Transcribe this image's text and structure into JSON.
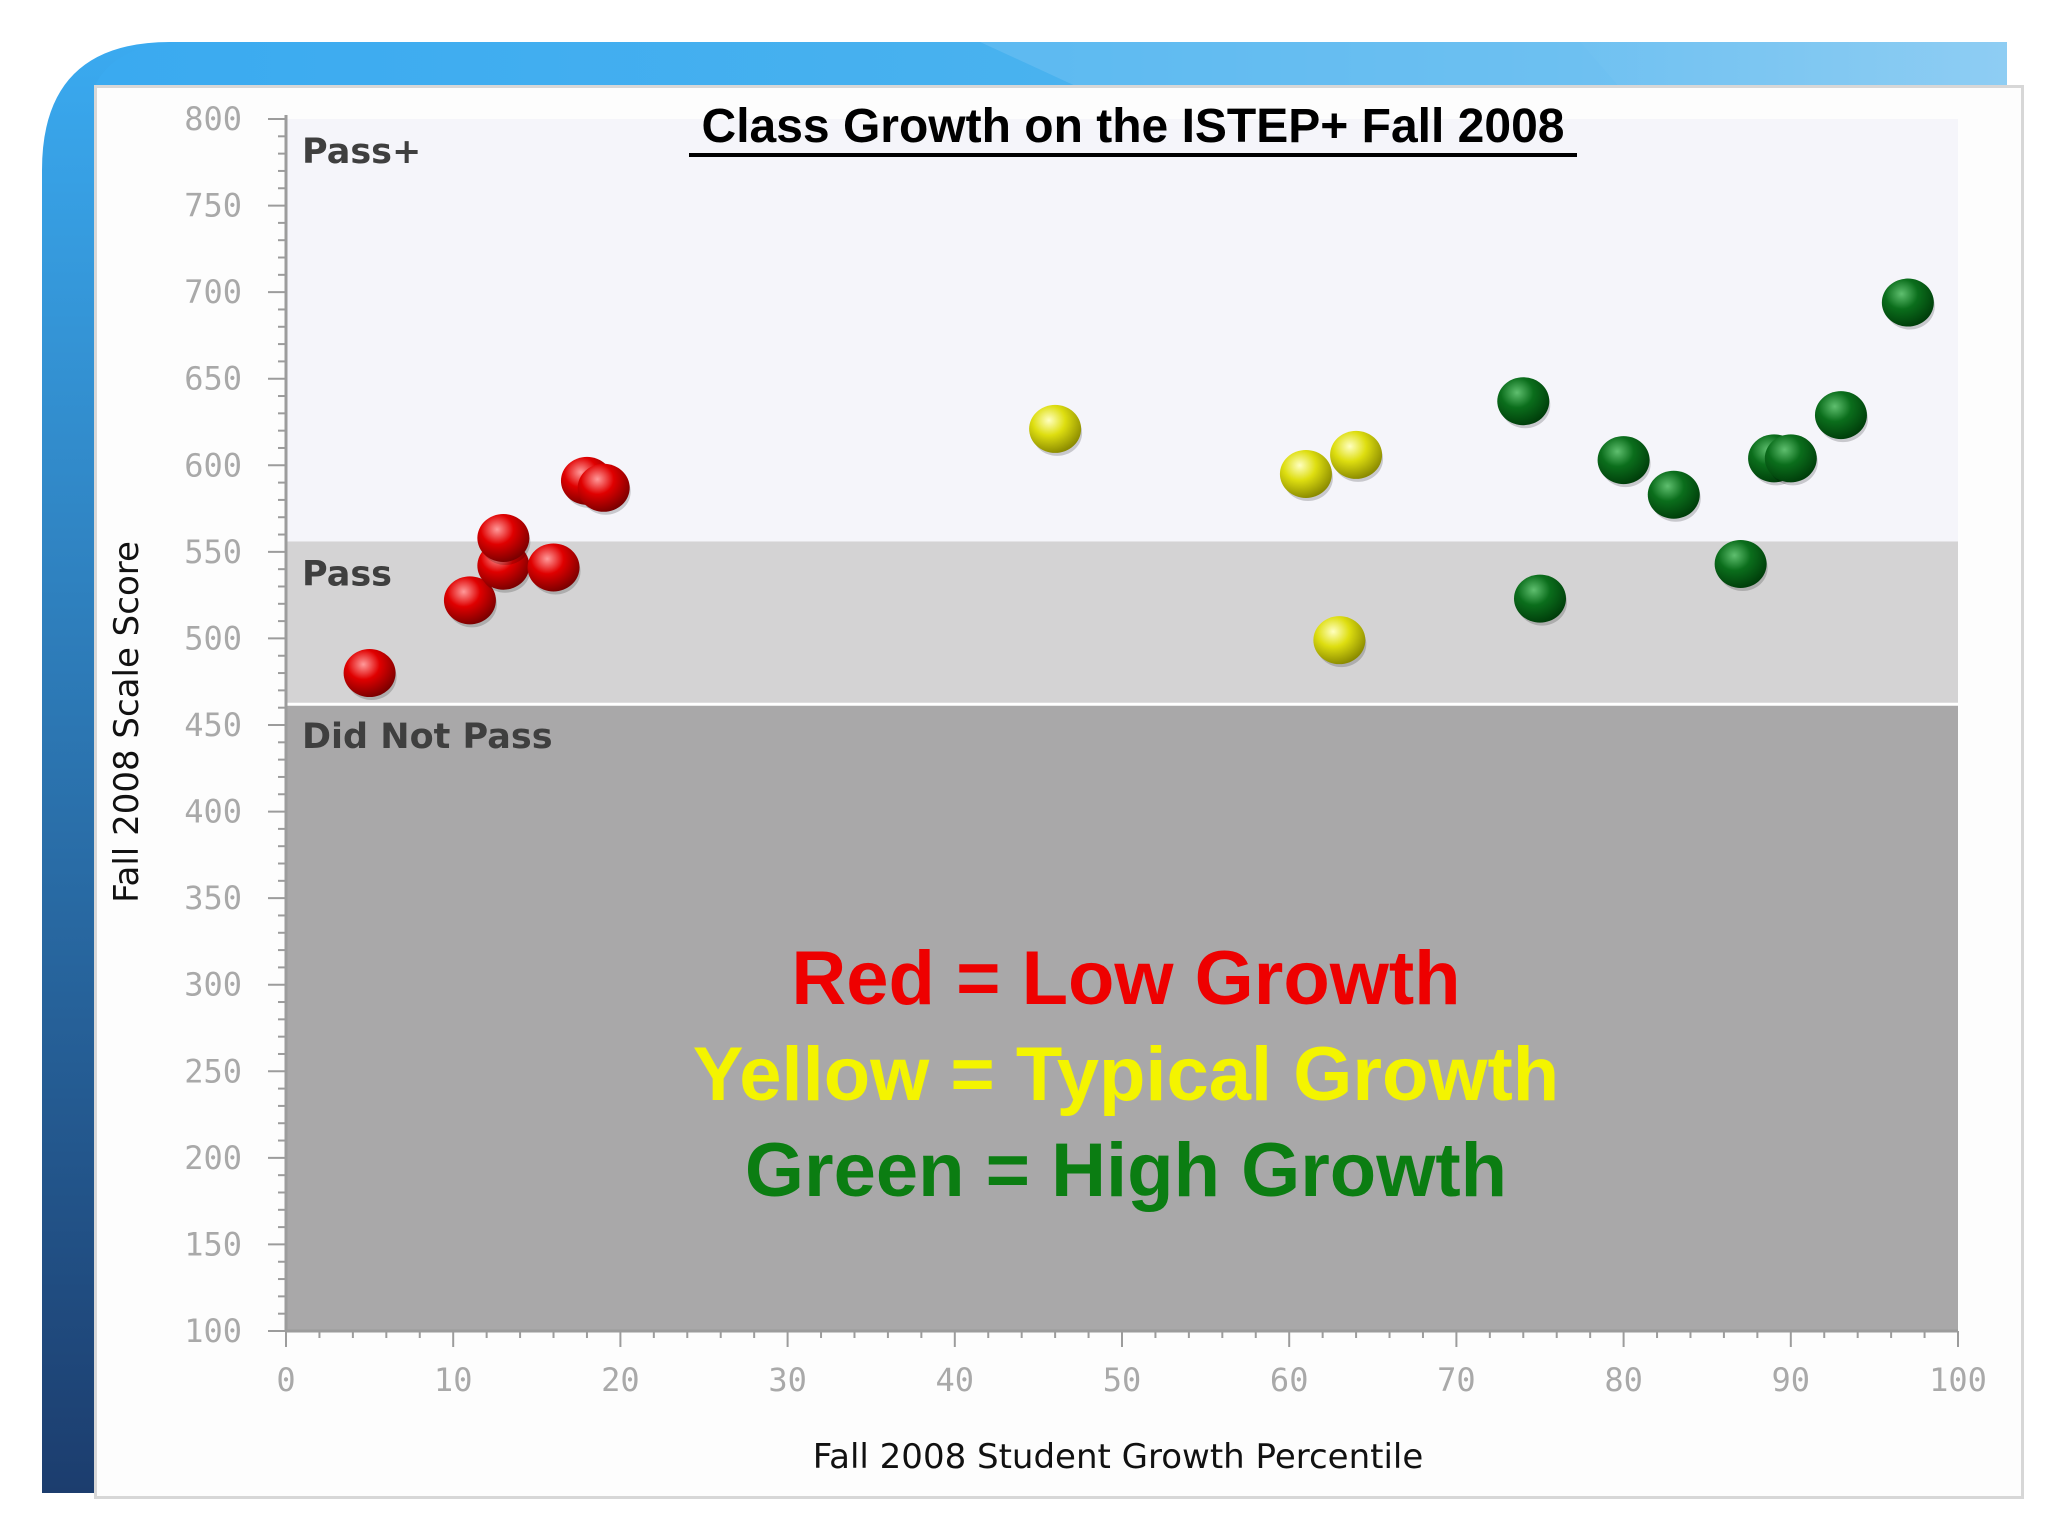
{
  "chart_data": {
    "type": "scatter",
    "title": "Class Growth on the ISTEP+ Fall 2008",
    "xlabel": "Fall 2008 Student Growth Percentile",
    "ylabel": "Fall 2008 Scale Score",
    "xlim": [
      0,
      100
    ],
    "ylim": [
      100,
      800
    ],
    "x_ticks": [
      "0",
      "10",
      "20",
      "30",
      "40",
      "50",
      "60",
      "70",
      "80",
      "90",
      "100"
    ],
    "y_ticks": [
      "100",
      "150",
      "200",
      "250",
      "300",
      "350",
      "400",
      "450",
      "500",
      "550",
      "600",
      "650",
      "700",
      "750",
      "800"
    ],
    "bands": [
      {
        "label": "Pass+",
        "from": 556,
        "to": 800,
        "color": "#f5f5fa"
      },
      {
        "label": "Pass",
        "from": 462,
        "to": 556,
        "color": "#d4d3d4"
      },
      {
        "label": "Did Not Pass",
        "from": 100,
        "to": 462,
        "color": "#a9a8a9"
      }
    ],
    "series": [
      {
        "name": "Low Growth",
        "color": "#e00000",
        "shade": "#7a0000",
        "highlight": "#ff9a9a",
        "points": [
          [
            5,
            480
          ],
          [
            11,
            522
          ],
          [
            13,
            542
          ],
          [
            13,
            558
          ],
          [
            16,
            541
          ],
          [
            18,
            591
          ],
          [
            19,
            587
          ]
        ]
      },
      {
        "name": "Typical Growth",
        "color": "#dede10",
        "shade": "#8a8a00",
        "highlight": "#ffffc0",
        "points": [
          [
            46,
            621
          ],
          [
            61,
            595
          ],
          [
            63,
            499
          ],
          [
            64,
            606
          ]
        ]
      },
      {
        "name": "High Growth",
        "color": "#0b6e1c",
        "shade": "#003d0a",
        "highlight": "#5fbf6f",
        "points": [
          [
            74,
            637
          ],
          [
            75,
            523
          ],
          [
            80,
            603
          ],
          [
            83,
            583
          ],
          [
            87,
            543
          ],
          [
            89,
            604
          ],
          [
            90,
            604
          ],
          [
            93,
            629
          ],
          [
            97,
            694
          ]
        ]
      }
    ],
    "legend_lines": [
      {
        "text": "Red = Low Growth",
        "color": "#ee0000"
      },
      {
        "text": "Yellow = Typical Growth",
        "color": "#f4f400"
      },
      {
        "text": "Green = High Growth",
        "color": "#0b7d12"
      }
    ]
  },
  "theme": {
    "frame_blue_top": "#3aaaf0",
    "frame_blue_bottom": "#1c3d6e",
    "frame_light": "#8ecdf3"
  }
}
